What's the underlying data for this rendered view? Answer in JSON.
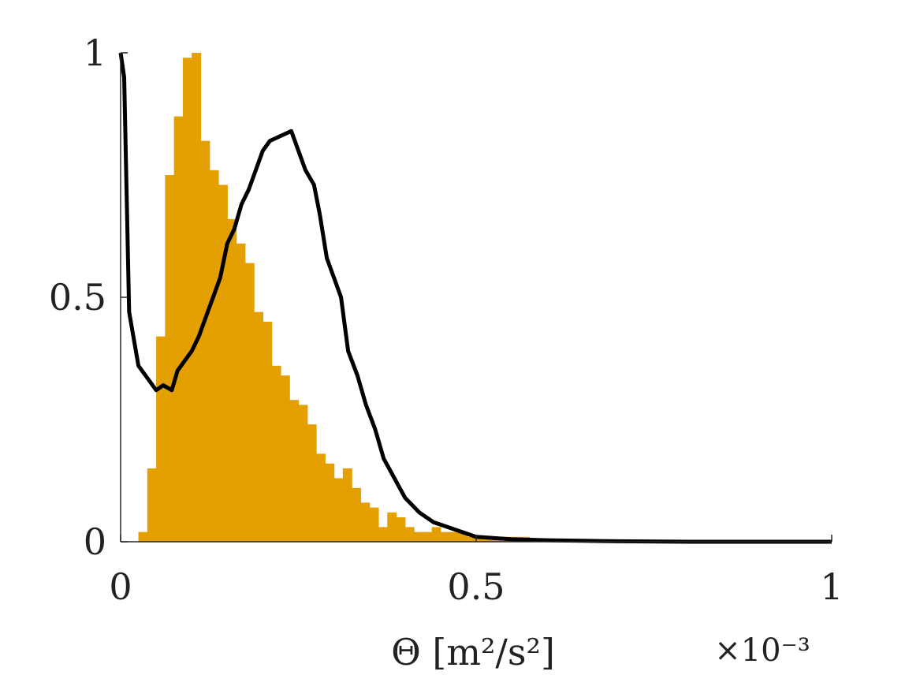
{
  "chart_data": {
    "type": "bar",
    "title": "",
    "xlabel": "Θ [m²/s²]",
    "ylabel": "",
    "x_exponent_label": "×10⁻³",
    "xlim": [
      0,
      1
    ],
    "ylim": [
      0,
      1
    ],
    "xticks": [
      0,
      0.5,
      1
    ],
    "xtick_labels": [
      "0",
      "0.5",
      "1"
    ],
    "yticks": [
      0,
      0.5,
      1
    ],
    "ytick_labels": [
      "0",
      "0.5",
      "1"
    ],
    "grid": false,
    "legend": "none",
    "series": [
      {
        "type": "histogram",
        "color": "#E3A000",
        "bin_width": 0.0125,
        "bins_start": [
          0.025,
          0.0375,
          0.05,
          0.0625,
          0.075,
          0.0875,
          0.1,
          0.1125,
          0.125,
          0.1375,
          0.15,
          0.1625,
          0.175,
          0.1875,
          0.2,
          0.2125,
          0.225,
          0.2375,
          0.25,
          0.2625,
          0.275,
          0.2875,
          0.3,
          0.3125,
          0.325,
          0.3375,
          0.35,
          0.3625,
          0.375,
          0.3875,
          0.4,
          0.4125,
          0.425,
          0.4375,
          0.45,
          0.4625,
          0.475,
          0.4875,
          0.5,
          0.5125,
          0.525,
          0.5375,
          0.55,
          0.5625
        ],
        "values": [
          0.02,
          0.15,
          0.42,
          0.75,
          0.87,
          0.99,
          1.0,
          0.82,
          0.76,
          0.73,
          0.66,
          0.61,
          0.57,
          0.47,
          0.45,
          0.36,
          0.34,
          0.29,
          0.28,
          0.24,
          0.18,
          0.16,
          0.13,
          0.15,
          0.11,
          0.08,
          0.07,
          0.03,
          0.06,
          0.05,
          0.03,
          0.02,
          0.02,
          0.03,
          0.02,
          0.02,
          0.02,
          0.01,
          0.01,
          0.01,
          0.01,
          0.01,
          0.01,
          0.01
        ]
      },
      {
        "type": "line",
        "color": "#000000",
        "x": [
          0.0,
          0.005,
          0.012,
          0.025,
          0.035,
          0.05,
          0.06,
          0.072,
          0.08,
          0.09,
          0.1,
          0.11,
          0.12,
          0.13,
          0.14,
          0.15,
          0.16,
          0.17,
          0.18,
          0.19,
          0.2,
          0.21,
          0.225,
          0.24,
          0.25,
          0.26,
          0.272,
          0.28,
          0.29,
          0.3,
          0.31,
          0.32,
          0.333,
          0.345,
          0.358,
          0.37,
          0.385,
          0.4,
          0.42,
          0.44,
          0.46,
          0.48,
          0.5,
          0.52,
          0.55,
          0.6,
          0.65,
          0.7,
          0.8,
          0.9,
          1.0
        ],
        "y": [
          1.0,
          0.95,
          0.47,
          0.36,
          0.34,
          0.31,
          0.32,
          0.31,
          0.35,
          0.37,
          0.39,
          0.42,
          0.46,
          0.5,
          0.54,
          0.61,
          0.64,
          0.69,
          0.72,
          0.76,
          0.8,
          0.82,
          0.83,
          0.84,
          0.8,
          0.76,
          0.73,
          0.67,
          0.58,
          0.54,
          0.5,
          0.39,
          0.34,
          0.28,
          0.23,
          0.17,
          0.13,
          0.09,
          0.06,
          0.04,
          0.03,
          0.02,
          0.01,
          0.008,
          0.005,
          0.003,
          0.002,
          0.001,
          0.0,
          0.0,
          0.0
        ]
      }
    ]
  }
}
